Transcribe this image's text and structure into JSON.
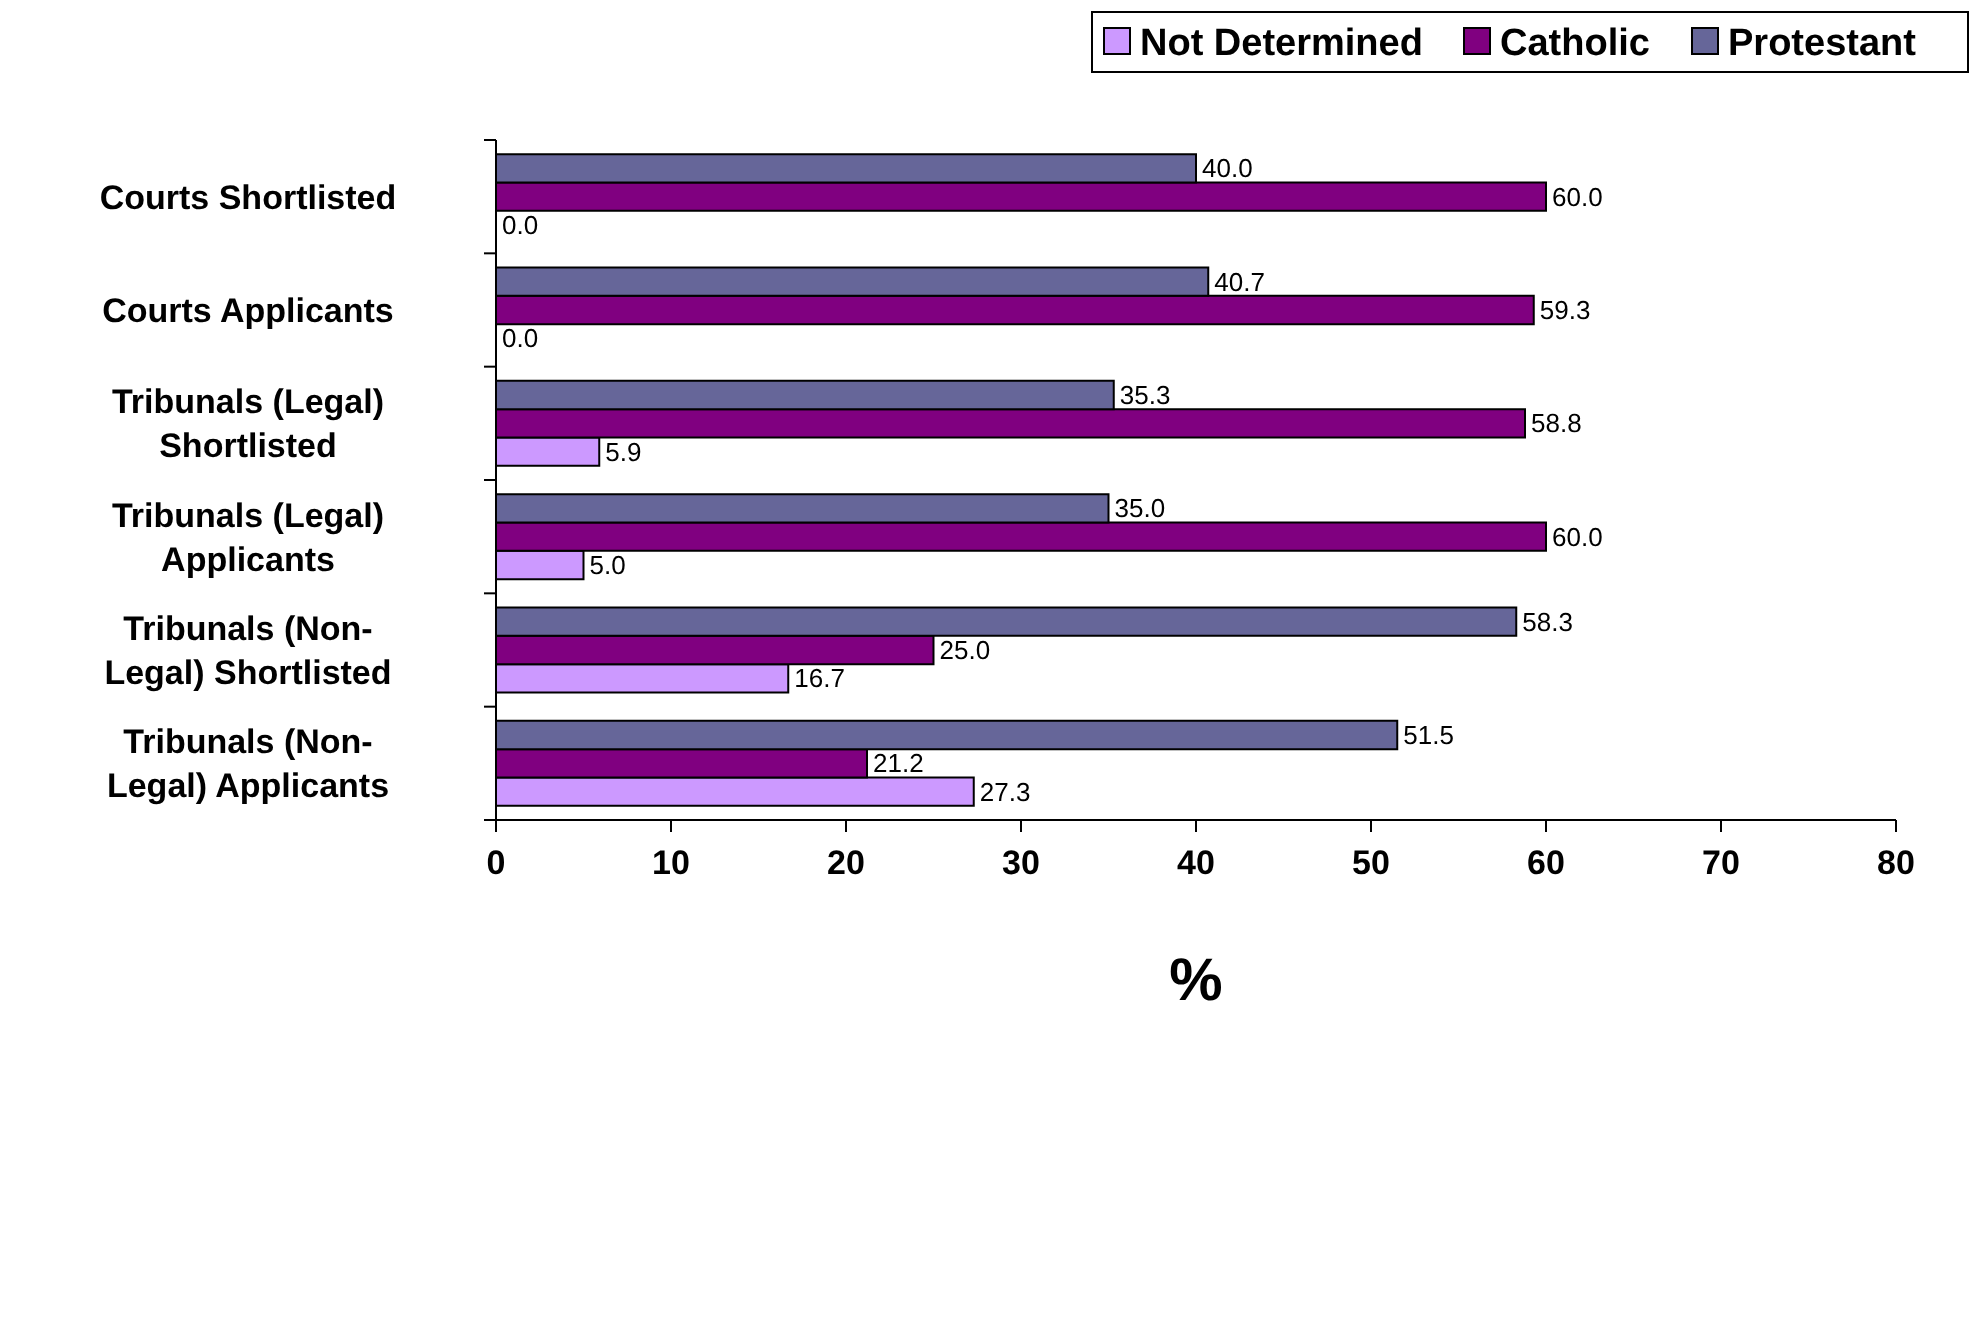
{
  "chart_data": {
    "type": "bar",
    "orientation": "horizontal",
    "xlabel": "%",
    "categories": [
      "Courts Shortlisted",
      "Courts Applicants",
      "Tribunals (Legal) Shortlisted",
      "Tribunals (Legal) Applicants",
      "Tribunals (Non-Legal) Shortlisted",
      "Tribunals (Non-Legal) Applicants"
    ],
    "series": [
      {
        "name": "Not Determined",
        "color": "#cc99ff",
        "values": [
          0,
          0,
          5.9,
          5,
          16.7,
          27.3
        ],
        "value_labels": [
          "0.0",
          "0.0",
          "5.9",
          "5.0",
          "16.7",
          "27.3"
        ]
      },
      {
        "name": "Catholic",
        "color": "#800080",
        "values": [
          60,
          59.3,
          58.8,
          60,
          25,
          21.2
        ],
        "value_labels": [
          "60.0",
          "59.3",
          "58.8",
          "60.0",
          "25.0",
          "21.2"
        ]
      },
      {
        "name": "Protestant",
        "color": "#666699",
        "values": [
          40,
          40.7,
          35.3,
          35,
          58.3,
          51.5
        ],
        "value_labels": [
          "40.0",
          "40.7",
          "35.3",
          "35.0",
          "58.3",
          "51.5"
        ]
      }
    ],
    "xlim": [
      0,
      80
    ],
    "xticks": [
      0,
      10,
      20,
      30,
      40,
      50,
      60,
      70,
      80
    ],
    "legend": "top right",
    "grid": false
  }
}
